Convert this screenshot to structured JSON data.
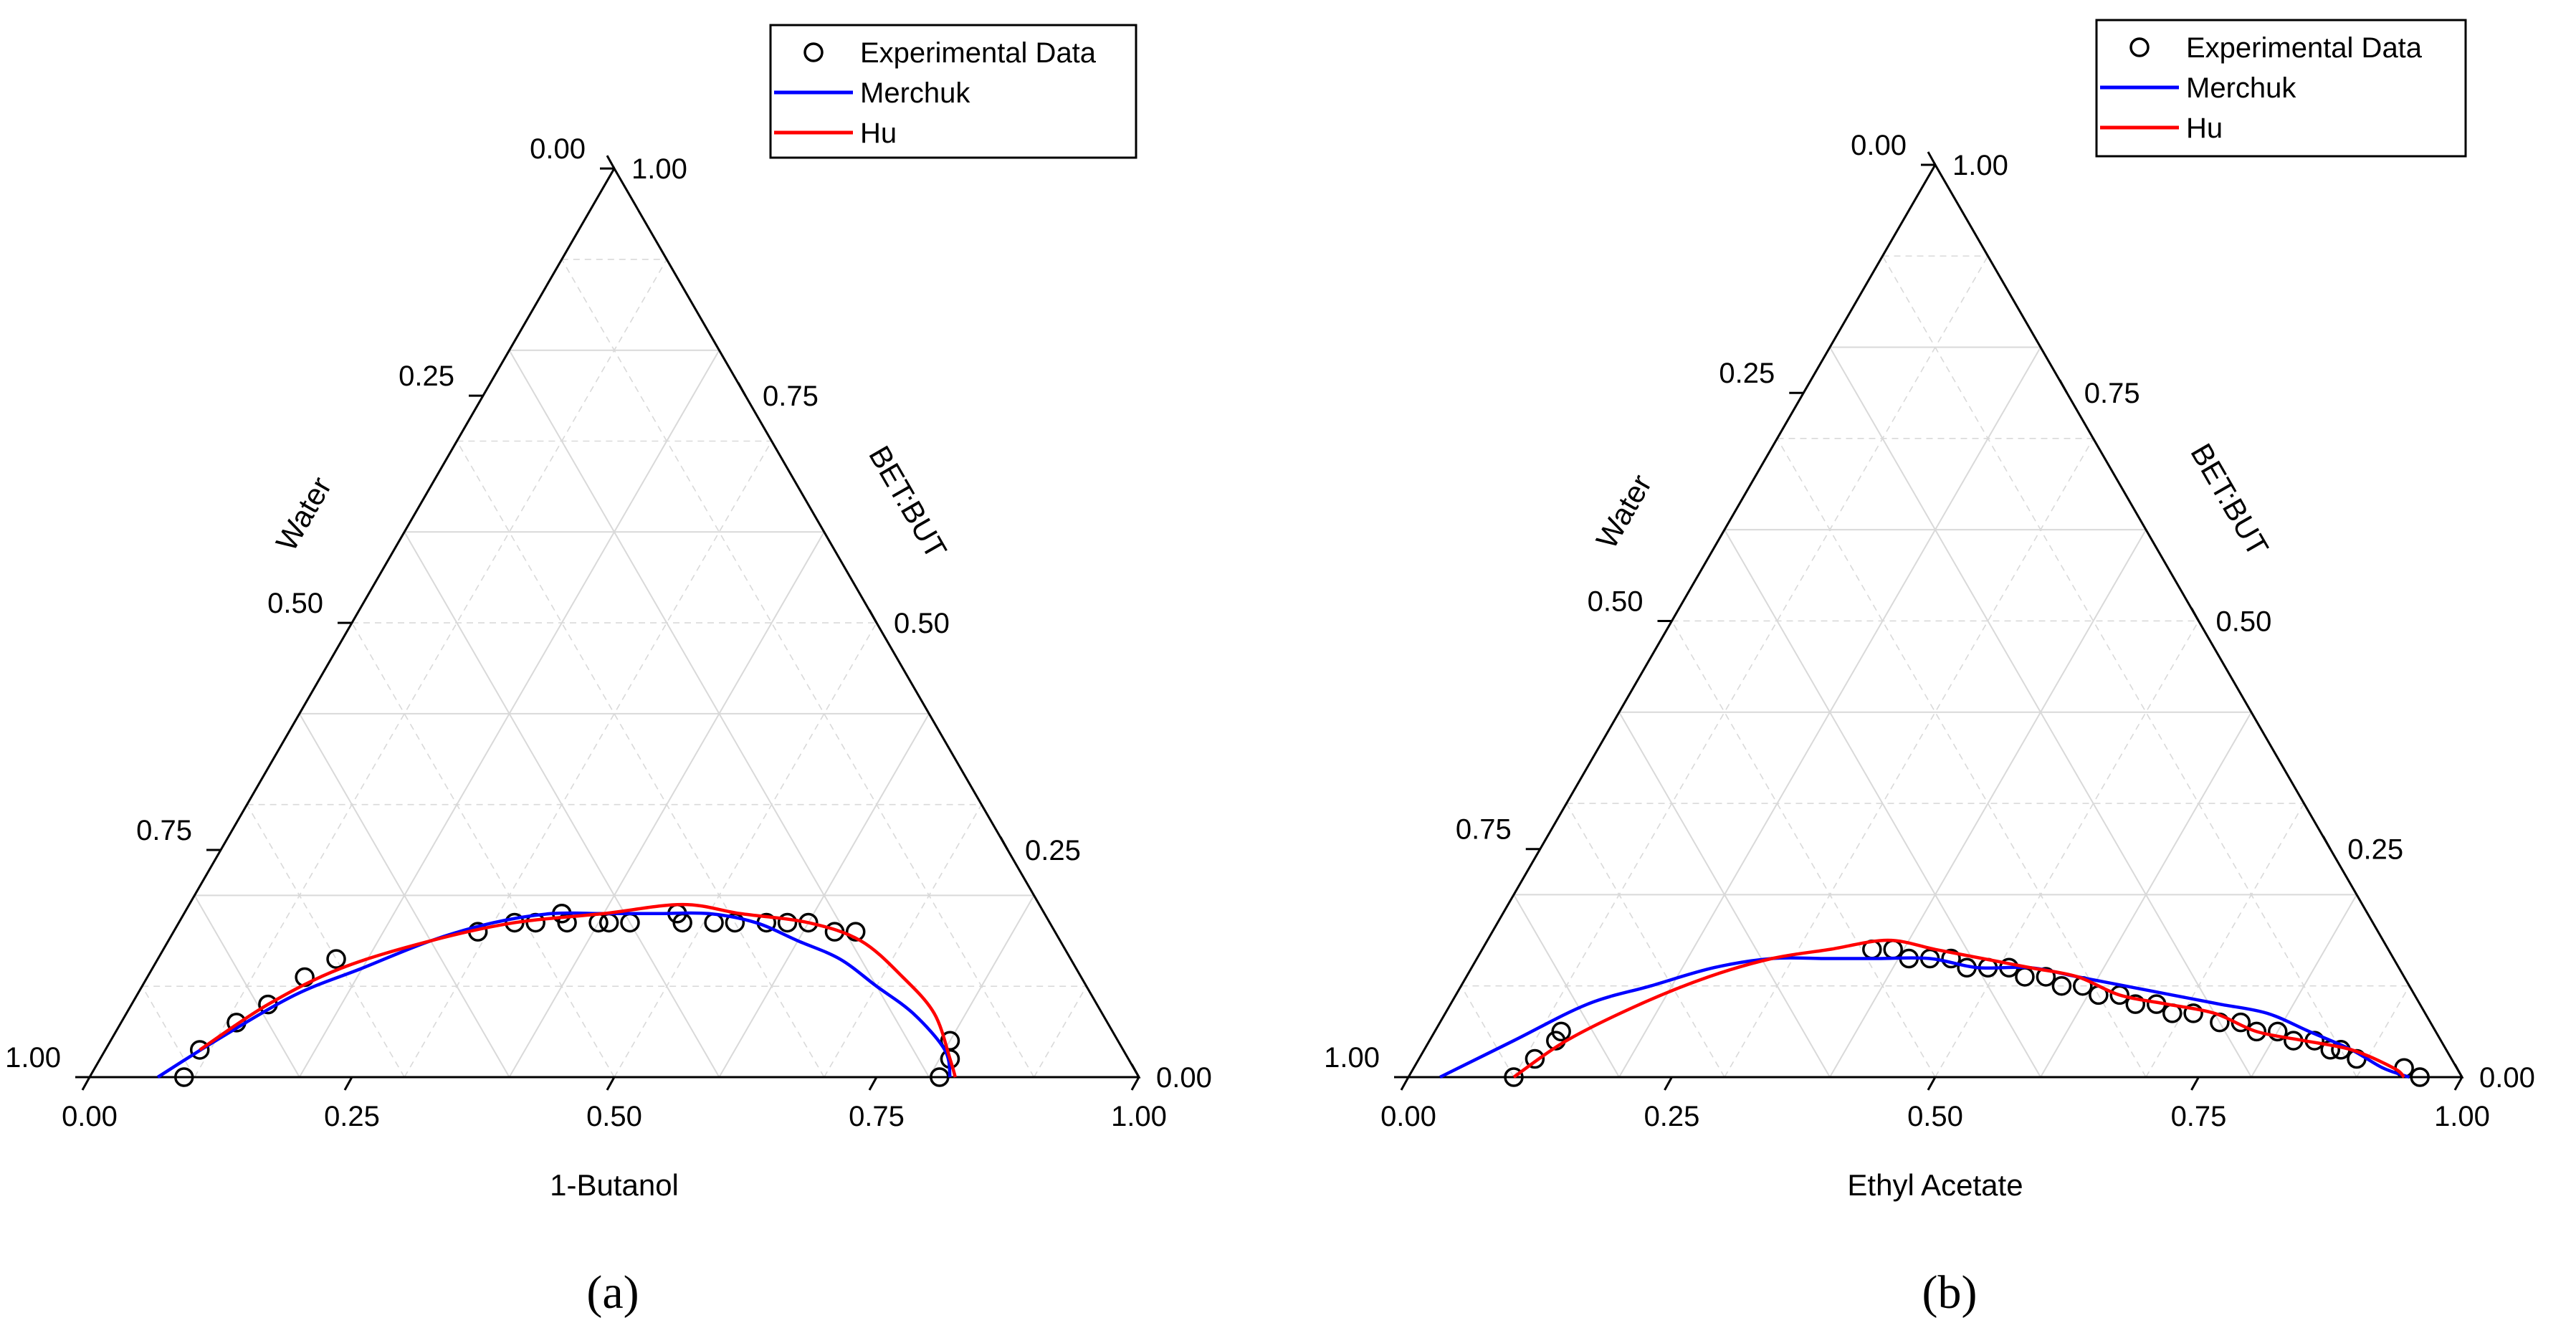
{
  "chart_data": [
    {
      "type": "ternary",
      "panel_label": "(a)",
      "axis_bottom": {
        "label": "1-Butanol",
        "ticks": [
          "0.00",
          "0.25",
          "0.50",
          "0.75",
          "1.00"
        ]
      },
      "axis_left": {
        "label": "Water",
        "ticks": [
          "0.00",
          "0.25",
          "0.50",
          "0.75",
          "1.00"
        ]
      },
      "axis_right": {
        "label": "BET:BUT",
        "ticks": [
          "0.00",
          "0.25",
          "0.50",
          "0.75",
          "1.00"
        ]
      },
      "grid": true,
      "legend": {
        "position": "top-right",
        "entries": [
          {
            "label": "Experimental Data",
            "marker": "open-circle",
            "color": "#000000"
          },
          {
            "label": "Merchuk",
            "marker": "line",
            "color": "#0000ff"
          },
          {
            "label": "Hu",
            "marker": "line",
            "color": "#ff0000"
          }
        ]
      },
      "series": [
        {
          "name": "Experimental Data",
          "kind": "scatter",
          "color": "#000000",
          "points": [
            [
              0.09,
              0.0
            ],
            [
              0.09,
              0.03
            ],
            [
              0.11,
              0.06
            ],
            [
              0.13,
              0.08
            ],
            [
              0.15,
              0.11
            ],
            [
              0.17,
              0.13
            ],
            [
              0.29,
              0.16
            ],
            [
              0.32,
              0.17
            ],
            [
              0.34,
              0.17
            ],
            [
              0.36,
              0.18
            ],
            [
              0.37,
              0.17
            ],
            [
              0.4,
              0.17
            ],
            [
              0.41,
              0.17
            ],
            [
              0.43,
              0.17
            ],
            [
              0.47,
              0.18
            ],
            [
              0.48,
              0.17
            ],
            [
              0.51,
              0.17
            ],
            [
              0.53,
              0.17
            ],
            [
              0.56,
              0.17
            ],
            [
              0.58,
              0.17
            ],
            [
              0.6,
              0.17
            ],
            [
              0.63,
              0.16
            ],
            [
              0.65,
              0.16
            ],
            [
              0.8,
              0.04
            ],
            [
              0.81,
              0.02
            ],
            [
              0.81,
              0.0
            ]
          ]
        },
        {
          "name": "Merchuk",
          "kind": "line",
          "color": "#0000ff",
          "points": [
            [
              0.065,
              0.0
            ],
            [
              0.1,
              0.04
            ],
            [
              0.15,
              0.09
            ],
            [
              0.2,
              0.12
            ],
            [
              0.25,
              0.15
            ],
            [
              0.3,
              0.17
            ],
            [
              0.35,
              0.18
            ],
            [
              0.4,
              0.18
            ],
            [
              0.45,
              0.18
            ],
            [
              0.5,
              0.18
            ],
            [
              0.55,
              0.17
            ],
            [
              0.6,
              0.15
            ],
            [
              0.65,
              0.13
            ],
            [
              0.7,
              0.1
            ],
            [
              0.75,
              0.07
            ],
            [
              0.8,
              0.03
            ],
            [
              0.82,
              0.0
            ]
          ]
        },
        {
          "name": "Hu",
          "kind": "line",
          "color": "#ff0000",
          "points": [
            [
              0.09,
              0.03
            ],
            [
              0.13,
              0.08
            ],
            [
              0.18,
              0.12
            ],
            [
              0.25,
              0.15
            ],
            [
              0.32,
              0.17
            ],
            [
              0.4,
              0.18
            ],
            [
              0.47,
              0.19
            ],
            [
              0.53,
              0.18
            ],
            [
              0.6,
              0.17
            ],
            [
              0.66,
              0.15
            ],
            [
              0.72,
              0.11
            ],
            [
              0.77,
              0.07
            ],
            [
              0.81,
              0.02
            ],
            [
              0.825,
              0.0
            ]
          ]
        }
      ]
    },
    {
      "type": "ternary",
      "panel_label": "(b)",
      "axis_bottom": {
        "label": "Ethyl Acetate",
        "ticks": [
          "0.00",
          "0.25",
          "0.50",
          "0.75",
          "1.00"
        ]
      },
      "axis_left": {
        "label": "Water",
        "ticks": [
          "0.00",
          "0.25",
          "0.50",
          "0.75",
          "1.00"
        ]
      },
      "axis_right": {
        "label": "BET:BUT",
        "ticks": [
          "0.00",
          "0.25",
          "0.50",
          "0.75",
          "1.00"
        ]
      },
      "grid": true,
      "legend": {
        "position": "top-right",
        "entries": [
          {
            "label": "Experimental Data",
            "marker": "open-circle",
            "color": "#000000"
          },
          {
            "label": "Merchuk",
            "marker": "line",
            "color": "#0000ff"
          },
          {
            "label": "Hu",
            "marker": "line",
            "color": "#ff0000"
          }
        ]
      },
      "series": [
        {
          "name": "Experimental Data",
          "kind": "scatter",
          "color": "#000000",
          "points": [
            [
              0.1,
              0.0
            ],
            [
              0.11,
              0.02
            ],
            [
              0.12,
              0.04
            ],
            [
              0.12,
              0.05
            ],
            [
              0.37,
              0.14
            ],
            [
              0.39,
              0.14
            ],
            [
              0.41,
              0.13
            ],
            [
              0.43,
              0.13
            ],
            [
              0.45,
              0.13
            ],
            [
              0.47,
              0.12
            ],
            [
              0.49,
              0.12
            ],
            [
              0.51,
              0.12
            ],
            [
              0.53,
              0.11
            ],
            [
              0.55,
              0.11
            ],
            [
              0.57,
              0.1
            ],
            [
              0.59,
              0.1
            ],
            [
              0.61,
              0.09
            ],
            [
              0.63,
              0.09
            ],
            [
              0.65,
              0.08
            ],
            [
              0.67,
              0.08
            ],
            [
              0.69,
              0.07
            ],
            [
              0.71,
              0.07
            ],
            [
              0.74,
              0.06
            ],
            [
              0.76,
              0.06
            ],
            [
              0.78,
              0.05
            ],
            [
              0.8,
              0.05
            ],
            [
              0.82,
              0.04
            ],
            [
              0.84,
              0.04
            ],
            [
              0.86,
              0.03
            ],
            [
              0.87,
              0.03
            ],
            [
              0.89,
              0.02
            ],
            [
              0.94,
              0.01
            ],
            [
              0.96,
              0.0
            ]
          ]
        },
        {
          "name": "Merchuk",
          "kind": "line",
          "color": "#0000ff",
          "points": [
            [
              0.03,
              0.0
            ],
            [
              0.08,
              0.04
            ],
            [
              0.13,
              0.08
            ],
            [
              0.18,
              0.1
            ],
            [
              0.23,
              0.12
            ],
            [
              0.28,
              0.13
            ],
            [
              0.33,
              0.13
            ],
            [
              0.38,
              0.13
            ],
            [
              0.43,
              0.13
            ],
            [
              0.48,
              0.12
            ],
            [
              0.53,
              0.12
            ],
            [
              0.58,
              0.11
            ],
            [
              0.63,
              0.1
            ],
            [
              0.68,
              0.09
            ],
            [
              0.73,
              0.08
            ],
            [
              0.78,
              0.07
            ],
            [
              0.83,
              0.05
            ],
            [
              0.88,
              0.03
            ],
            [
              0.92,
              0.01
            ],
            [
              0.95,
              0.0
            ]
          ]
        },
        {
          "name": "Hu",
          "kind": "line",
          "color": "#ff0000",
          "points": [
            [
              0.1,
              0.0
            ],
            [
              0.13,
              0.04
            ],
            [
              0.18,
              0.08
            ],
            [
              0.23,
              0.11
            ],
            [
              0.28,
              0.13
            ],
            [
              0.33,
              0.14
            ],
            [
              0.38,
              0.15
            ],
            [
              0.43,
              0.14
            ],
            [
              0.48,
              0.13
            ],
            [
              0.53,
              0.12
            ],
            [
              0.58,
              0.11
            ],
            [
              0.63,
              0.09
            ],
            [
              0.68,
              0.08
            ],
            [
              0.73,
              0.07
            ],
            [
              0.78,
              0.05
            ],
            [
              0.83,
              0.04
            ],
            [
              0.88,
              0.03
            ],
            [
              0.93,
              0.01
            ],
            [
              0.945,
              0.0
            ]
          ]
        }
      ]
    }
  ]
}
